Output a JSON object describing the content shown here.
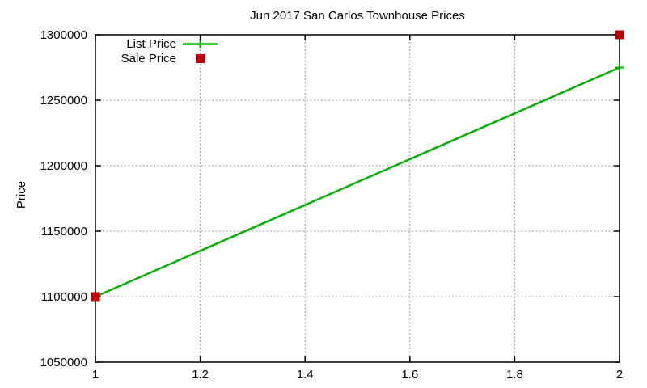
{
  "chart_data": {
    "type": "line",
    "title": "Jun 2017 San Carlos Townhouse Prices",
    "xlabel": "",
    "ylabel": "Price",
    "xlim": [
      1,
      2
    ],
    "ylim": [
      1050000,
      1300000
    ],
    "x_tick_labels": [
      "1",
      "1.2",
      "1.4",
      "1.6",
      "1.8",
      "2"
    ],
    "x_tick_values": [
      1,
      1.2,
      1.4,
      1.6,
      1.8,
      2
    ],
    "y_tick_labels": [
      "1050000",
      "1100000",
      "1150000",
      "1200000",
      "1250000",
      "1300000"
    ],
    "y_tick_values": [
      1050000,
      1100000,
      1150000,
      1200000,
      1250000,
      1300000
    ],
    "grid": true,
    "legend_position": "top-left",
    "colors": {
      "grid": "#9c9c9c",
      "border": "#000000",
      "text": "#000000",
      "background": "#ffffff"
    },
    "series": [
      {
        "name": "List Price",
        "style": "linespoints",
        "marker": "plus",
        "color": "#00b000",
        "x": [
          1,
          2
        ],
        "y": [
          1100000,
          1275000
        ]
      },
      {
        "name": "Sale Price",
        "style": "points",
        "marker": "filled-square",
        "color": "#c00000",
        "x": [
          1,
          2
        ],
        "y": [
          1100000,
          1300000
        ]
      }
    ]
  }
}
